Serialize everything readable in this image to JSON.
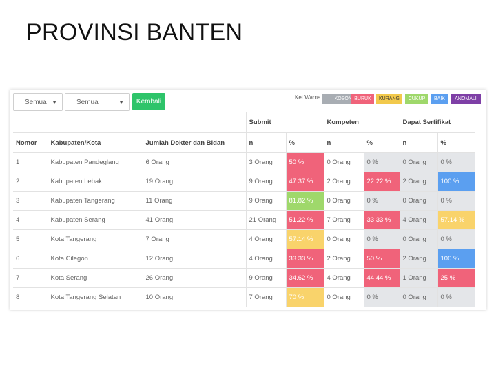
{
  "slide": {
    "title": "PROVINSI BANTEN"
  },
  "filters": {
    "select1": "Semua",
    "select2": "Semua",
    "back_label": "Kembali"
  },
  "legend": {
    "label": "Ket Warna :",
    "items": [
      {
        "label": "KOSONG",
        "color": "#a8adb3"
      },
      {
        "label": "BURUK",
        "color": "#f0637a"
      },
      {
        "label": "KURANG",
        "color": "#f2c94c"
      },
      {
        "label": "CUKUP",
        "color": "#9fd86b"
      },
      {
        "label": "BAIK",
        "color": "#5b9ff0"
      },
      {
        "label": "ANOMALI",
        "color": "#7e3fa6"
      }
    ]
  },
  "table": {
    "groups": {
      "submit": "Submit",
      "kompeten": "Kompeten",
      "sertifikat": "Dapat Sertifikat"
    },
    "headers": {
      "nomor": "Nomor",
      "kab": "Kabupaten/Kota",
      "jumlah": "Jumlah Dokter dan Bidan",
      "n": "n",
      "pct": "%"
    },
    "rows": [
      {
        "no": "1",
        "kab": "Kabupaten Pandeglang",
        "jml": "6 Orang",
        "sn": "3 Orang",
        "sp": "50 %",
        "spc": "red",
        "kn": "0 Orang",
        "kp": "0 %",
        "kpc": "gray",
        "dn": "0 Orang",
        "dp": "0 %",
        "dpc": "gray"
      },
      {
        "no": "2",
        "kab": "Kabupaten Lebak",
        "jml": "19 Orang",
        "sn": "9 Orang",
        "sp": "47.37 %",
        "spc": "red",
        "kn": "2 Orang",
        "kp": "22.22 %",
        "kpc": "red",
        "dn": "2 Orang",
        "dp": "100 %",
        "dpc": "blue"
      },
      {
        "no": "3",
        "kab": "Kabupaten Tangerang",
        "jml": "11 Orang",
        "sn": "9 Orang",
        "sp": "81.82 %",
        "spc": "green",
        "kn": "0 Orang",
        "kp": "0 %",
        "kpc": "gray",
        "dn": "0 Orang",
        "dp": "0 %",
        "dpc": "gray"
      },
      {
        "no": "4",
        "kab": "Kabupaten Serang",
        "jml": "41 Orang",
        "sn": "21 Orang",
        "sp": "51.22 %",
        "spc": "red",
        "kn": "7 Orang",
        "kp": "33.33 %",
        "kpc": "red",
        "dn": "4 Orang",
        "dp": "57.14 %",
        "dpc": "yellow"
      },
      {
        "no": "5",
        "kab": "Kota Tangerang",
        "jml": "7 Orang",
        "sn": "4 Orang",
        "sp": "57.14 %",
        "spc": "yellow",
        "kn": "0 Orang",
        "kp": "0 %",
        "kpc": "gray",
        "dn": "0 Orang",
        "dp": "0 %",
        "dpc": "gray"
      },
      {
        "no": "6",
        "kab": "Kota Cilegon",
        "jml": "12 Orang",
        "sn": "4 Orang",
        "sp": "33.33 %",
        "spc": "red",
        "kn": "2 Orang",
        "kp": "50 %",
        "kpc": "red",
        "dn": "2 Orang",
        "dp": "100 %",
        "dpc": "blue"
      },
      {
        "no": "7",
        "kab": "Kota Serang",
        "jml": "26 Orang",
        "sn": "9 Orang",
        "sp": "34.62 %",
        "spc": "red",
        "kn": "4 Orang",
        "kp": "44.44 %",
        "kpc": "red",
        "dn": "1 Orang",
        "dp": "25 %",
        "dpc": "red"
      },
      {
        "no": "8",
        "kab": "Kota Tangerang Selatan",
        "jml": "10 Orang",
        "sn": "7 Orang",
        "sp": "70 %",
        "spc": "yellow",
        "kn": "0 Orang",
        "kp": "0 %",
        "kpc": "gray",
        "dn": "0 Orang",
        "dp": "0 %",
        "dpc": "gray"
      }
    ]
  }
}
